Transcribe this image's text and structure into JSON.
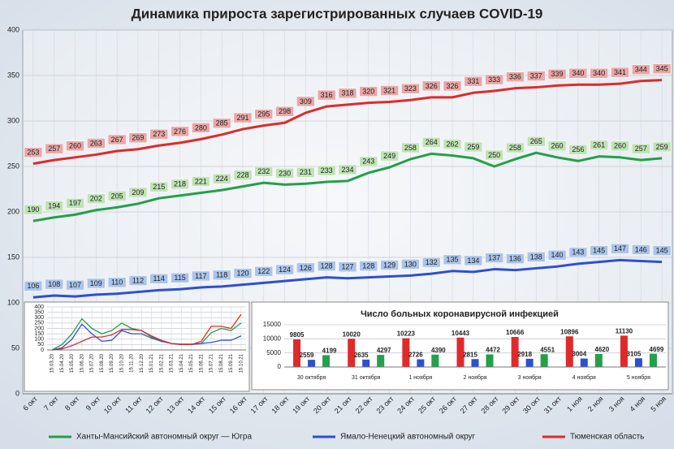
{
  "chart_data": [
    {
      "type": "line",
      "title": "Динамика прироста зарегистрированных случаев COVID-19",
      "categories": [
        "6 окт",
        "7 окт",
        "8 окт",
        "9 окт",
        "10 окт",
        "11 окт",
        "12 окт",
        "13 окт",
        "14 окт",
        "15 окт",
        "16 окт",
        "17 окт",
        "18 окт",
        "19 окт",
        "20 окт",
        "21 окт",
        "22 окт",
        "23 окт",
        "24 окт",
        "25 окт",
        "26 окт",
        "27 окт",
        "28 окт",
        "29 окт",
        "30 окт",
        "31 окт",
        "1 ноя",
        "2 ноя",
        "3 ноя",
        "4 ноя",
        "5 ноя"
      ],
      "series": [
        {
          "name": "Ханты-Мансийский автономный округ — Югра",
          "color": "#22a04a",
          "label_color": "#bfe3b5",
          "values": [
            190,
            194,
            197,
            202,
            205,
            209,
            215,
            218,
            221,
            224,
            228,
            232,
            230,
            231,
            233,
            234,
            243,
            249,
            258,
            264,
            262,
            259,
            250,
            258,
            265,
            260,
            256,
            261,
            260,
            257,
            259
          ]
        },
        {
          "name": "Ямало-Ненецкий автономный округ",
          "color": "#2d50d0",
          "label_color": "#abc4ea",
          "values": [
            106,
            108,
            107,
            109,
            110,
            112,
            114,
            115,
            117,
            118,
            120,
            122,
            124,
            126,
            128,
            127,
            128,
            129,
            130,
            132,
            135,
            134,
            137,
            136,
            138,
            140,
            143,
            145,
            147,
            146,
            145
          ]
        },
        {
          "name": "Тюменская область",
          "color": "#e02a2a",
          "label_color": "#eaa7a7",
          "values": [
            253,
            257,
            260,
            263,
            267,
            269,
            273,
            276,
            280,
            285,
            291,
            295,
            298,
            309,
            316,
            318,
            320,
            321,
            323,
            326,
            326,
            331,
            333,
            336,
            337,
            339,
            340,
            340,
            341,
            344,
            345
          ]
        }
      ],
      "ylim": [
        0,
        400
      ],
      "yticks": [
        0,
        50,
        100,
        150,
        200,
        250,
        300,
        350,
        400
      ],
      "grid": true,
      "data_labels": true,
      "legend": "bottom"
    },
    {
      "type": "line",
      "categories": [
        "15.03.20",
        "15.04.20",
        "15.05.20",
        "15.06.20",
        "15.07.20",
        "15.08.20",
        "15.09.20",
        "15.10.20",
        "15.11.20",
        "15.12.20",
        "15.01.21",
        "15.02.21",
        "15.03.21",
        "15.04.21",
        "15.05.21",
        "15.06.21",
        "15.07.21",
        "15.08.21",
        "15.09.21",
        "15.10.21"
      ],
      "series": [
        {
          "color": "#22a04a",
          "values": [
            0,
            50,
            150,
            290,
            200,
            150,
            180,
            250,
            200,
            180,
            120,
            80,
            60,
            55,
            55,
            60,
            160,
            200,
            180,
            250
          ]
        },
        {
          "color": "#2d50d0",
          "values": [
            0,
            20,
            100,
            240,
            150,
            80,
            90,
            180,
            150,
            150,
            110,
            80,
            60,
            50,
            50,
            60,
            70,
            90,
            90,
            130
          ]
        },
        {
          "color": "#e02a2a",
          "values": [
            0,
            10,
            40,
            80,
            120,
            120,
            140,
            190,
            190,
            180,
            130,
            90,
            60,
            50,
            50,
            80,
            220,
            220,
            200,
            330
          ]
        }
      ],
      "ylim": [
        0,
        400
      ],
      "yticks": [
        0,
        50,
        100,
        150,
        200,
        250,
        300,
        350,
        400
      ],
      "grid": true
    },
    {
      "type": "bar",
      "title": "Число больных коронавирусной инфекцией",
      "categories": [
        "30 октября",
        "31 октября",
        "1 ноября",
        "2 ноября",
        "3 ноября",
        "4 ноября",
        "5 ноября"
      ],
      "series": [
        {
          "color": "#e02a2a",
          "values": [
            9805,
            10020,
            10223,
            10443,
            10666,
            10896,
            11130
          ]
        },
        {
          "color": "#2d50d0",
          "values": [
            2559,
            2635,
            2726,
            2815,
            2918,
            3004,
            3105
          ]
        },
        {
          "color": "#22a04a",
          "values": [
            4199,
            4297,
            4390,
            4472,
            4551,
            4620,
            4699
          ]
        }
      ],
      "ylim": [
        0,
        15000
      ],
      "yticks": [
        0,
        5000,
        10000,
        15000
      ],
      "grid": true
    }
  ]
}
